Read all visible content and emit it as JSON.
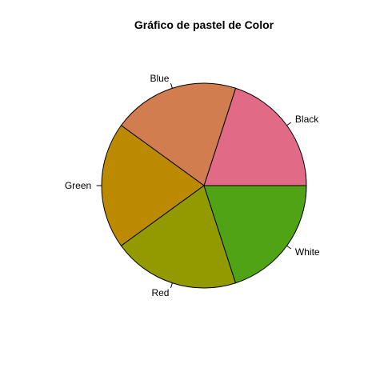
{
  "chart_data": {
    "type": "pie",
    "title": "Gráfico de pastel de Color",
    "categories": [
      "Black",
      "Blue",
      "Green",
      "Red",
      "White"
    ],
    "values": [
      20,
      20,
      20,
      20,
      20
    ],
    "colors": [
      "#E16A86",
      "#D17D4F",
      "#BB8A00",
      "#929A00",
      "#50A315"
    ],
    "start_angle_deg": 0,
    "direction": "counterclockwise",
    "xlabel": "",
    "ylabel": "",
    "legend": "none"
  }
}
